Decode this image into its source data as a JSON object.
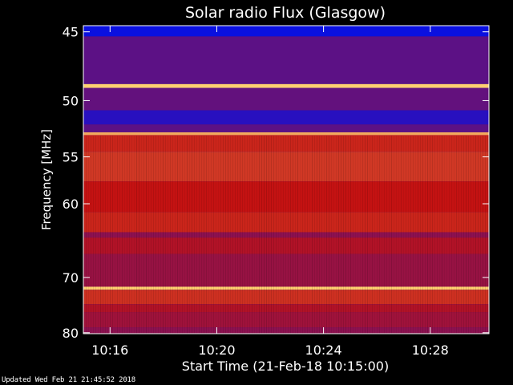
{
  "chart_data": {
    "type": "heatmap",
    "title": "Solar radio Flux (Glasgow)",
    "ylabel": "Frequency [MHz]",
    "xlabel": "Start Time (21-Feb-18 10:15:00)",
    "x_ticks": [
      {
        "label": "10:16",
        "minutes": 16
      },
      {
        "label": "10:20",
        "minutes": 20
      },
      {
        "label": "10:24",
        "minutes": 24
      },
      {
        "label": "10:28",
        "minutes": 28
      }
    ],
    "y_ticks": [
      45,
      50,
      55,
      60,
      70,
      80
    ],
    "xlim_minutes": [
      15,
      30.2
    ],
    "ylim_mhz": [
      44.6,
      80.2
    ],
    "y_scale": "reciprocal",
    "colors": {
      "background": "#000000",
      "axis": "#ffffff",
      "low": "#0a10e0",
      "mid": "#c41212",
      "high": "#ffd070"
    },
    "bands_mhz": [
      {
        "from": 44.6,
        "to": 45.3,
        "level": 0.0
      },
      {
        "from": 45.3,
        "to": 48.7,
        "level": 0.22
      },
      {
        "from": 48.7,
        "to": 49.0,
        "level": 1.0
      },
      {
        "from": 49.0,
        "to": 50.8,
        "level": 0.24
      },
      {
        "from": 50.8,
        "to": 52.0,
        "level": 0.08
      },
      {
        "from": 52.0,
        "to": 52.7,
        "level": 0.22
      },
      {
        "from": 52.7,
        "to": 52.95,
        "level": 0.9
      },
      {
        "from": 52.95,
        "to": 54.5,
        "level": 0.55
      },
      {
        "from": 54.5,
        "to": 57.5,
        "level": 0.6
      },
      {
        "from": 57.5,
        "to": 61.0,
        "level": 0.5
      },
      {
        "from": 61.0,
        "to": 63.5,
        "level": 0.55
      },
      {
        "from": 63.5,
        "to": 64.2,
        "level": 0.35
      },
      {
        "from": 64.2,
        "to": 66.5,
        "level": 0.45
      },
      {
        "from": 66.5,
        "to": 71.5,
        "level": 0.38
      },
      {
        "from": 71.5,
        "to": 72.0,
        "level": 1.0
      },
      {
        "from": 72.0,
        "to": 74.5,
        "level": 0.58
      },
      {
        "from": 74.5,
        "to": 76.0,
        "level": 0.45
      },
      {
        "from": 76.0,
        "to": 79.0,
        "level": 0.4
      },
      {
        "from": 79.0,
        "to": 80.2,
        "level": 0.35
      }
    ]
  },
  "footer": {
    "updated": "Updated Wed Feb 21 21:45:52 2018"
  }
}
